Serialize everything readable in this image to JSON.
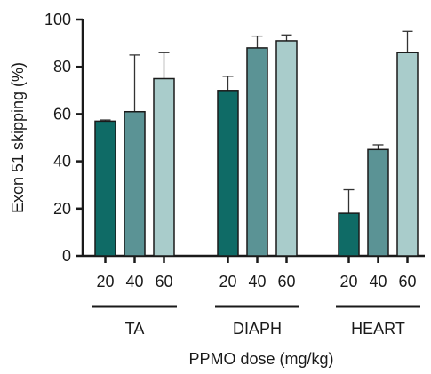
{
  "chart_data": {
    "type": "bar",
    "ylabel": "Exon 51 skipping (%)",
    "xlabel": "PPMO dose (mg/kg)",
    "ylim": [
      0,
      100
    ],
    "yticks": [
      0,
      20,
      40,
      60,
      80,
      100
    ],
    "groups": [
      {
        "name": "TA",
        "bars": [
          {
            "dose": "20",
            "value": 57,
            "error": 0.5,
            "color": "#0f6b66"
          },
          {
            "dose": "40",
            "value": 61,
            "error": 24,
            "color": "#5b9395"
          },
          {
            "dose": "60",
            "value": 75,
            "error": 11,
            "color": "#a9cccb"
          }
        ]
      },
      {
        "name": "DIAPH",
        "bars": [
          {
            "dose": "20",
            "value": 70,
            "error": 6,
            "color": "#0f6b66"
          },
          {
            "dose": "40",
            "value": 88,
            "error": 5,
            "color": "#5b9395"
          },
          {
            "dose": "60",
            "value": 91,
            "error": 2.5,
            "color": "#a9cccb"
          }
        ]
      },
      {
        "name": "HEART",
        "bars": [
          {
            "dose": "20",
            "value": 18,
            "error": 10,
            "color": "#0f6b66"
          },
          {
            "dose": "40",
            "value": 45,
            "error": 2,
            "color": "#5b9395"
          },
          {
            "dose": "60",
            "value": 86,
            "error": 9,
            "color": "#a9cccb"
          }
        ]
      }
    ],
    "grid": false,
    "legend": "none"
  }
}
